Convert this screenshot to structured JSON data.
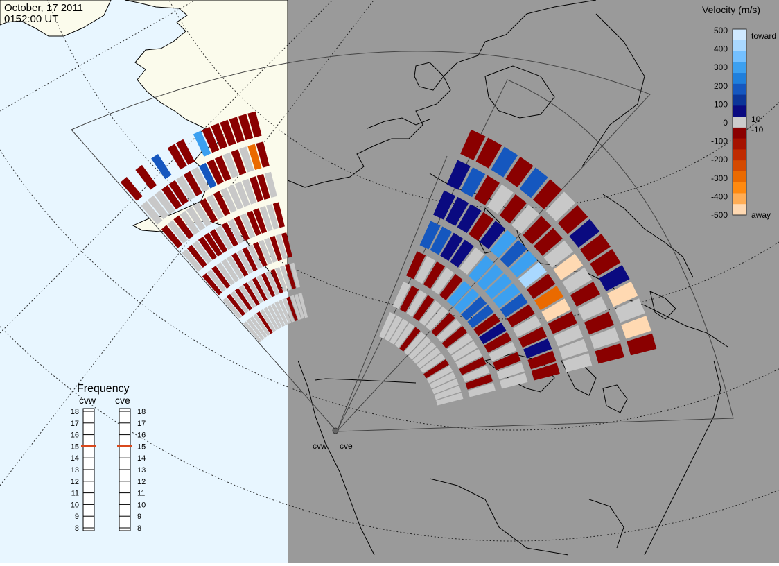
{
  "header": {
    "date": "October, 17 2011",
    "time": "0152:00 UT"
  },
  "colors": {
    "day_ocean": "#e8f6ff",
    "night": "#9a9a9a",
    "day_land": "#fbfbec",
    "coast": "#000000",
    "ground_scatter": "#c8c8c8",
    "slow_away": "#8a0000",
    "low_velocity": "#0a0a80"
  },
  "velocity_scale": {
    "title": "Velocity (m/s)",
    "toward_label": "toward",
    "away_label": "away",
    "ticks": [
      "500",
      "400",
      "300",
      "200",
      "100",
      "0",
      "-100",
      "-200",
      "-300",
      "-400",
      "-500"
    ],
    "inner_ticks": [
      "10",
      "-10"
    ],
    "colors": [
      "#cfe9ff",
      "#a9d8ff",
      "#74c0ff",
      "#3ca0f0",
      "#1f7fdc",
      "#1557bf",
      "#0c3598",
      "#0a0a80",
      "#cccccc",
      "#8a0000",
      "#a51200",
      "#bf2a00",
      "#d44a00",
      "#ea6a00",
      "#ff8a10",
      "#ffad55",
      "#ffd9b2"
    ]
  },
  "frequency": {
    "title": "Frequency",
    "radars": [
      {
        "name": "cvw",
        "value_mhz": 15
      },
      {
        "name": "cve",
        "value_mhz": 15
      }
    ],
    "ticks": [
      "18",
      "17",
      "16",
      "15",
      "14",
      "13",
      "12",
      "11",
      "10",
      "9",
      "8"
    ],
    "marker_color": "#d9481c"
  },
  "radar_sites": [
    {
      "name": "cvw"
    },
    {
      "name": "cve"
    }
  ],
  "beams_cvw": [
    [
      {
        "s": "g",
        "c": 0
      },
      {
        "s": "g",
        "c": 1
      },
      {
        "s": "r",
        "c": 2
      },
      {
        "s": "g",
        "c": 3
      },
      {
        "s": "r",
        "c": 4
      },
      {
        "s": "g",
        "c": 5
      },
      {
        "s": "r",
        "c": 6
      }
    ],
    [
      {
        "s": "g",
        "c": 0
      },
      {
        "s": "r",
        "c": 1
      },
      {
        "s": "g",
        "c": 2
      },
      {
        "s": "r",
        "c": 3
      },
      {
        "s": "g",
        "c": 4
      },
      {
        "s": "g",
        "c": 5
      }
    ],
    [
      {
        "s": "g",
        "c": 0
      },
      {
        "s": "g",
        "c": 1
      },
      {
        "s": "r",
        "c": 2
      },
      {
        "s": "g",
        "c": 3
      },
      {
        "s": "r",
        "c": 4
      },
      {
        "s": "g",
        "c": 5
      },
      {
        "s": "r",
        "c": 6
      }
    ],
    [
      {
        "s": "g",
        "c": 0
      },
      {
        "s": "r",
        "c": 1
      },
      {
        "s": "g",
        "c": 2
      },
      {
        "s": "r",
        "c": 3
      },
      {
        "s": "g",
        "c": 4
      },
      {
        "s": "r",
        "c": 5
      }
    ],
    [
      {
        "s": "r",
        "c": 0
      },
      {
        "s": "g",
        "c": 1
      },
      {
        "s": "g",
        "c": 2
      },
      {
        "s": "r",
        "c": 3
      },
      {
        "s": "g",
        "c": 4
      },
      {
        "s": "r",
        "c": 5
      },
      {
        "s": "b",
        "c": 6
      }
    ],
    [
      {
        "s": "g",
        "c": 0
      },
      {
        "s": "r",
        "c": 1
      },
      {
        "s": "g",
        "c": 2
      },
      {
        "s": "r",
        "c": 3
      },
      {
        "s": "g",
        "c": 4
      },
      {
        "s": "g",
        "c": 5
      }
    ],
    [
      {
        "s": "g",
        "c": 0
      },
      {
        "s": "g",
        "c": 1
      },
      {
        "s": "r",
        "c": 2
      },
      {
        "s": "g",
        "c": 3
      },
      {
        "s": "r",
        "c": 4
      },
      {
        "s": "r",
        "c": 5
      },
      {
        "s": "r",
        "c": 6
      }
    ],
    [
      {
        "s": "g",
        "c": 0
      },
      {
        "s": "r",
        "c": 1
      },
      {
        "s": "g",
        "c": 2
      },
      {
        "s": "r",
        "c": 3
      },
      {
        "s": "g",
        "c": 4
      },
      {
        "s": "g",
        "c": 5
      },
      {
        "s": "r",
        "c": 6
      }
    ],
    [
      {
        "s": "g",
        "c": 0
      },
      {
        "s": "g",
        "c": 1
      },
      {
        "s": "r",
        "c": 2
      },
      {
        "s": "g",
        "c": 3
      },
      {
        "s": "r",
        "c": 4
      },
      {
        "s": "b",
        "c": 5
      }
    ],
    [
      {
        "s": "g",
        "c": 0
      },
      {
        "s": "r",
        "c": 1
      },
      {
        "s": "g",
        "c": 2
      },
      {
        "s": "r",
        "c": 3
      },
      {
        "s": "g",
        "c": 4
      },
      {
        "s": "r",
        "c": 5
      },
      {
        "s": "lb",
        "c": 6
      }
    ],
    [
      {
        "s": "g",
        "c": 0
      },
      {
        "s": "g",
        "c": 1
      },
      {
        "s": "r",
        "c": 2
      },
      {
        "s": "g",
        "c": 3
      },
      {
        "s": "g",
        "c": 4
      },
      {
        "s": "r",
        "c": 5
      },
      {
        "s": "r",
        "c": 6
      }
    ],
    [
      {
        "s": "g",
        "c": 0
      },
      {
        "s": "r",
        "c": 1
      },
      {
        "s": "g",
        "c": 2
      },
      {
        "s": "r",
        "c": 3
      },
      {
        "s": "g",
        "c": 4
      },
      {
        "s": "g",
        "c": 5
      },
      {
        "s": "r",
        "c": 6
      }
    ],
    [
      {
        "s": "r",
        "c": 0
      },
      {
        "s": "g",
        "c": 1
      },
      {
        "s": "g",
        "c": 2
      },
      {
        "s": "r",
        "c": 3
      },
      {
        "s": "g",
        "c": 4
      },
      {
        "s": "r",
        "c": 5
      },
      {
        "s": "r",
        "c": 6
      }
    ],
    [
      {
        "s": "g",
        "c": 0
      },
      {
        "s": "g",
        "c": 1
      },
      {
        "s": "r",
        "c": 2
      },
      {
        "s": "g",
        "c": 3
      },
      {
        "s": "r",
        "c": 4
      },
      {
        "s": "g",
        "c": 5
      },
      {
        "s": "r",
        "c": 6
      }
    ],
    [
      {
        "s": "g",
        "c": 0
      },
      {
        "s": "r",
        "c": 1
      },
      {
        "s": "g",
        "c": 2
      },
      {
        "s": "g",
        "c": 3
      },
      {
        "s": "r",
        "c": 4
      },
      {
        "s": "o",
        "c": 5
      },
      {
        "s": "r",
        "c": 6
      }
    ],
    [
      {
        "s": "g",
        "c": 0
      },
      {
        "s": "g",
        "c": 1
      },
      {
        "s": "r",
        "c": 2
      },
      {
        "s": "r",
        "c": 3
      },
      {
        "s": "g",
        "c": 4
      },
      {
        "s": "r",
        "c": 5
      },
      {
        "s": "r",
        "c": 6
      }
    ]
  ],
  "beams_cve": [
    [
      {
        "s": "g",
        "c": 0
      },
      {
        "s": "g",
        "c": 1
      },
      {
        "s": "r",
        "c": 2
      },
      {
        "s": "b",
        "c": 3
      },
      {
        "s": "db",
        "c": 4
      },
      {
        "s": "db",
        "c": 5
      },
      {
        "s": "r",
        "c": 6
      }
    ],
    [
      {
        "s": "g",
        "c": 0
      },
      {
        "s": "r",
        "c": 1
      },
      {
        "s": "g",
        "c": 2
      },
      {
        "s": "b",
        "c": 3
      },
      {
        "s": "db",
        "c": 4
      },
      {
        "s": "b",
        "c": 5
      },
      {
        "s": "r",
        "c": 6
      }
    ],
    [
      {
        "s": "g",
        "c": 0
      },
      {
        "s": "g",
        "c": 1
      },
      {
        "s": "r",
        "c": 2
      },
      {
        "s": "db",
        "c": 3
      },
      {
        "s": "db",
        "c": 4
      },
      {
        "s": "r",
        "c": 5
      },
      {
        "s": "b",
        "c": 6
      }
    ],
    [
      {
        "s": "g",
        "c": 0
      },
      {
        "s": "r",
        "c": 1
      },
      {
        "s": "g",
        "c": 2
      },
      {
        "s": "db",
        "c": 3
      },
      {
        "s": "r",
        "c": 4
      },
      {
        "s": "g",
        "c": 5
      },
      {
        "s": "r",
        "c": 6
      }
    ],
    [
      {
        "s": "r",
        "c": 0
      },
      {
        "s": "g",
        "c": 1
      },
      {
        "s": "r",
        "c": 2
      },
      {
        "s": "g",
        "c": 3
      },
      {
        "s": "db",
        "c": 4
      },
      {
        "s": "r",
        "c": 5
      },
      {
        "s": "b",
        "c": 6
      }
    ],
    [
      {
        "s": "g",
        "c": 0
      },
      {
        "s": "g",
        "c": 1
      },
      {
        "s": "lb",
        "c": 2
      },
      {
        "s": "lb",
        "c": 3
      },
      {
        "s": "lb",
        "c": 4
      },
      {
        "s": "g",
        "c": 5
      },
      {
        "s": "r",
        "c": 6
      }
    ],
    [
      {
        "s": "g",
        "c": 0
      },
      {
        "s": "r",
        "c": 1
      },
      {
        "s": "lb",
        "c": 2
      },
      {
        "s": "lb",
        "c": 3
      },
      {
        "s": "b",
        "c": 4
      },
      {
        "s": "r",
        "c": 5
      },
      {
        "s": "g",
        "c": 6
      }
    ],
    [
      {
        "s": "g",
        "c": 0
      },
      {
        "s": "g",
        "c": 1
      },
      {
        "s": "b",
        "c": 2
      },
      {
        "s": "lb",
        "c": 3
      },
      {
        "s": "lb",
        "c": 4
      },
      {
        "s": "r",
        "c": 5
      },
      {
        "s": "r",
        "c": 6
      }
    ],
    [
      {
        "s": "g",
        "c": 0
      },
      {
        "s": "r",
        "c": 1
      },
      {
        "s": "b",
        "c": 2
      },
      {
        "s": "lb",
        "c": 3
      },
      {
        "s": "pb",
        "c": 4
      },
      {
        "s": "g",
        "c": 5
      },
      {
        "s": "db",
        "c": 6
      }
    ],
    [
      {
        "s": "g",
        "c": 0
      },
      {
        "s": "g",
        "c": 1
      },
      {
        "s": "r",
        "c": 2
      },
      {
        "s": "b",
        "c": 3
      },
      {
        "s": "r",
        "c": 4
      },
      {
        "s": "pe",
        "c": 5
      },
      {
        "s": "r",
        "c": 6
      }
    ],
    [
      {
        "s": "r",
        "c": 0
      },
      {
        "s": "g",
        "c": 1
      },
      {
        "s": "db",
        "c": 2
      },
      {
        "s": "r",
        "c": 3
      },
      {
        "s": "o",
        "c": 4
      },
      {
        "s": "g",
        "c": 5
      },
      {
        "s": "r",
        "c": 6
      }
    ],
    [
      {
        "s": "g",
        "c": 0
      },
      {
        "s": "g",
        "c": 1
      },
      {
        "s": "r",
        "c": 2
      },
      {
        "s": "g",
        "c": 3
      },
      {
        "s": "pe",
        "c": 4
      },
      {
        "s": "r",
        "c": 5
      },
      {
        "s": "db",
        "c": 6
      }
    ],
    [
      {
        "s": "g",
        "c": 0
      },
      {
        "s": "r",
        "c": 1
      },
      {
        "s": "g",
        "c": 2
      },
      {
        "s": "r",
        "c": 3
      },
      {
        "s": "r",
        "c": 4
      },
      {
        "s": "g",
        "c": 5
      },
      {
        "s": "pe",
        "c": 6
      }
    ],
    [
      {
        "s": "g",
        "c": 0
      },
      {
        "s": "g",
        "c": 1
      },
      {
        "s": "r",
        "c": 2
      },
      {
        "s": "db",
        "c": 3
      },
      {
        "s": "g",
        "c": 4
      },
      {
        "s": "r",
        "c": 5
      },
      {
        "s": "g",
        "c": 6
      }
    ],
    [
      {
        "s": "g",
        "c": 0
      },
      {
        "s": "r",
        "c": 1
      },
      {
        "s": "g",
        "c": 2
      },
      {
        "s": "r",
        "c": 3
      },
      {
        "s": "g",
        "c": 4
      },
      {
        "s": "g",
        "c": 5
      },
      {
        "s": "pe",
        "c": 6
      }
    ],
    [
      {
        "s": "g",
        "c": 0
      },
      {
        "s": "g",
        "c": 1
      },
      {
        "s": "g",
        "c": 2
      },
      {
        "s": "r",
        "c": 3
      },
      {
        "s": "g",
        "c": 4
      },
      {
        "s": "r",
        "c": 5
      },
      {
        "s": "r",
        "c": 6
      }
    ]
  ]
}
